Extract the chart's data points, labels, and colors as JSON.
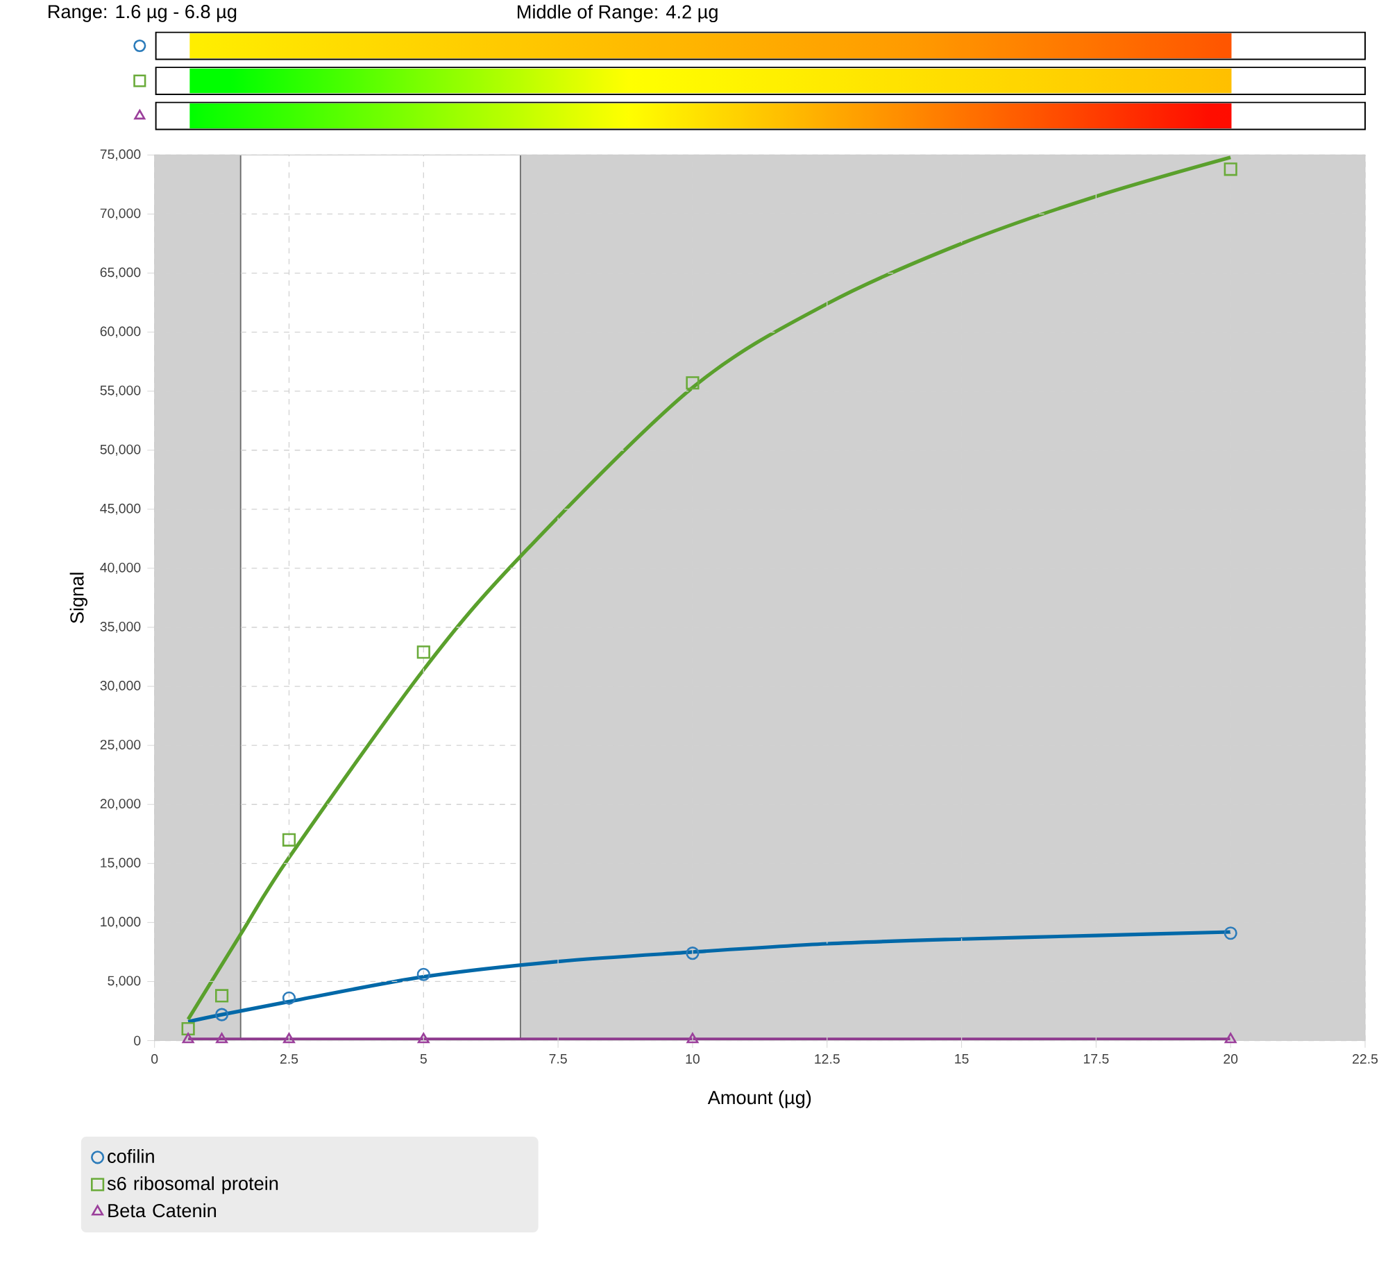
{
  "chart_data": {
    "type": "scatter",
    "title": "Range: 1.6 µg - 6.8 µg",
    "annotations": [
      "Middle of Range: 4.2 µg"
    ],
    "xlabel": "Amount (µg)",
    "ylabel": "Signal",
    "xlim": [
      0,
      22.5
    ],
    "xticks": [
      0,
      2.5,
      5,
      7.5,
      10,
      12.5,
      15,
      17.5,
      20,
      22.5
    ],
    "ylim": [
      0,
      75000
    ],
    "yticks": [
      0,
      {
        "value": 5000,
        "label": "5,000"
      },
      {
        "value": 10000,
        "label": "10,000"
      },
      {
        "value": 15000,
        "label": "15,000"
      },
      {
        "value": 20000,
        "label": "20,000"
      },
      {
        "value": 25000,
        "label": "25,000"
      },
      {
        "value": 30000,
        "label": "30,000"
      },
      {
        "value": 35000,
        "label": "35,000"
      },
      {
        "value": 40000,
        "label": "40,000"
      },
      {
        "value": 45000,
        "label": "45,000"
      },
      {
        "value": 50000,
        "label": "50,000"
      },
      {
        "value": 55000,
        "label": "55,000"
      },
      {
        "value": 60000,
        "label": "60,000"
      },
      {
        "value": 65000,
        "label": "65,000"
      },
      {
        "value": 70000,
        "label": "70,000"
      },
      {
        "value": 75000,
        "label": "75,000"
      }
    ],
    "grid": true,
    "legend": "bottom left",
    "bands": [
      {
        "axis": "x",
        "from": 0,
        "to": 1.6,
        "color": "#d0d0d0"
      },
      {
        "axis": "x",
        "from": 6.8,
        "to": 22.5,
        "color": "#d0d0d0"
      }
    ],
    "ref_lines": [
      {
        "axis": "x",
        "value": 1.6,
        "color": "#6e6e6e"
      },
      {
        "axis": "x",
        "value": 6.8,
        "color": "#6e6e6e"
      }
    ],
    "series": [
      {
        "type": "line",
        "color": "#0068a8",
        "x": [
          0.625,
          1.25,
          2.5,
          5,
          7.5,
          10,
          12.5,
          15,
          17.5,
          20
        ],
        "values": [
          1600,
          2200,
          3300,
          5400,
          6700,
          7500,
          8200,
          8600,
          8900,
          9200
        ]
      },
      {
        "type": "line",
        "color": "#5aa02c",
        "x": [
          0.625,
          1.6,
          2.5,
          5,
          6.8,
          10,
          12.5,
          15,
          17.5,
          20
        ],
        "values": [
          1800,
          9000,
          15500,
          31400,
          41000,
          55300,
          62400,
          67500,
          71500,
          74800
        ]
      },
      {
        "type": "line",
        "color": "#8e3a8e",
        "x": [
          0.625,
          20
        ],
        "values": [
          100,
          100
        ]
      },
      {
        "name": "cofilin",
        "color": "#2b7bba",
        "marker": "circle",
        "x": [
          1.25,
          2.5,
          5,
          10,
          20
        ],
        "values": [
          2200,
          3600,
          5600,
          7400,
          9100
        ]
      },
      {
        "name": "s6 ribosomal protein",
        "color": "#6aab3a",
        "marker": "square",
        "x": [
          0.625,
          1.25,
          2.5,
          5,
          10,
          20
        ],
        "values": [
          1000,
          3800,
          17000,
          32900,
          55700,
          73800
        ]
      },
      {
        "name": "Beta Catenin",
        "color": "#9b3f9b",
        "marker": "triangle",
        "x": [
          0.625,
          1.25,
          2.5,
          5,
          10,
          20
        ],
        "values": [
          100,
          100,
          100,
          100,
          100,
          100
        ]
      }
    ]
  }
}
